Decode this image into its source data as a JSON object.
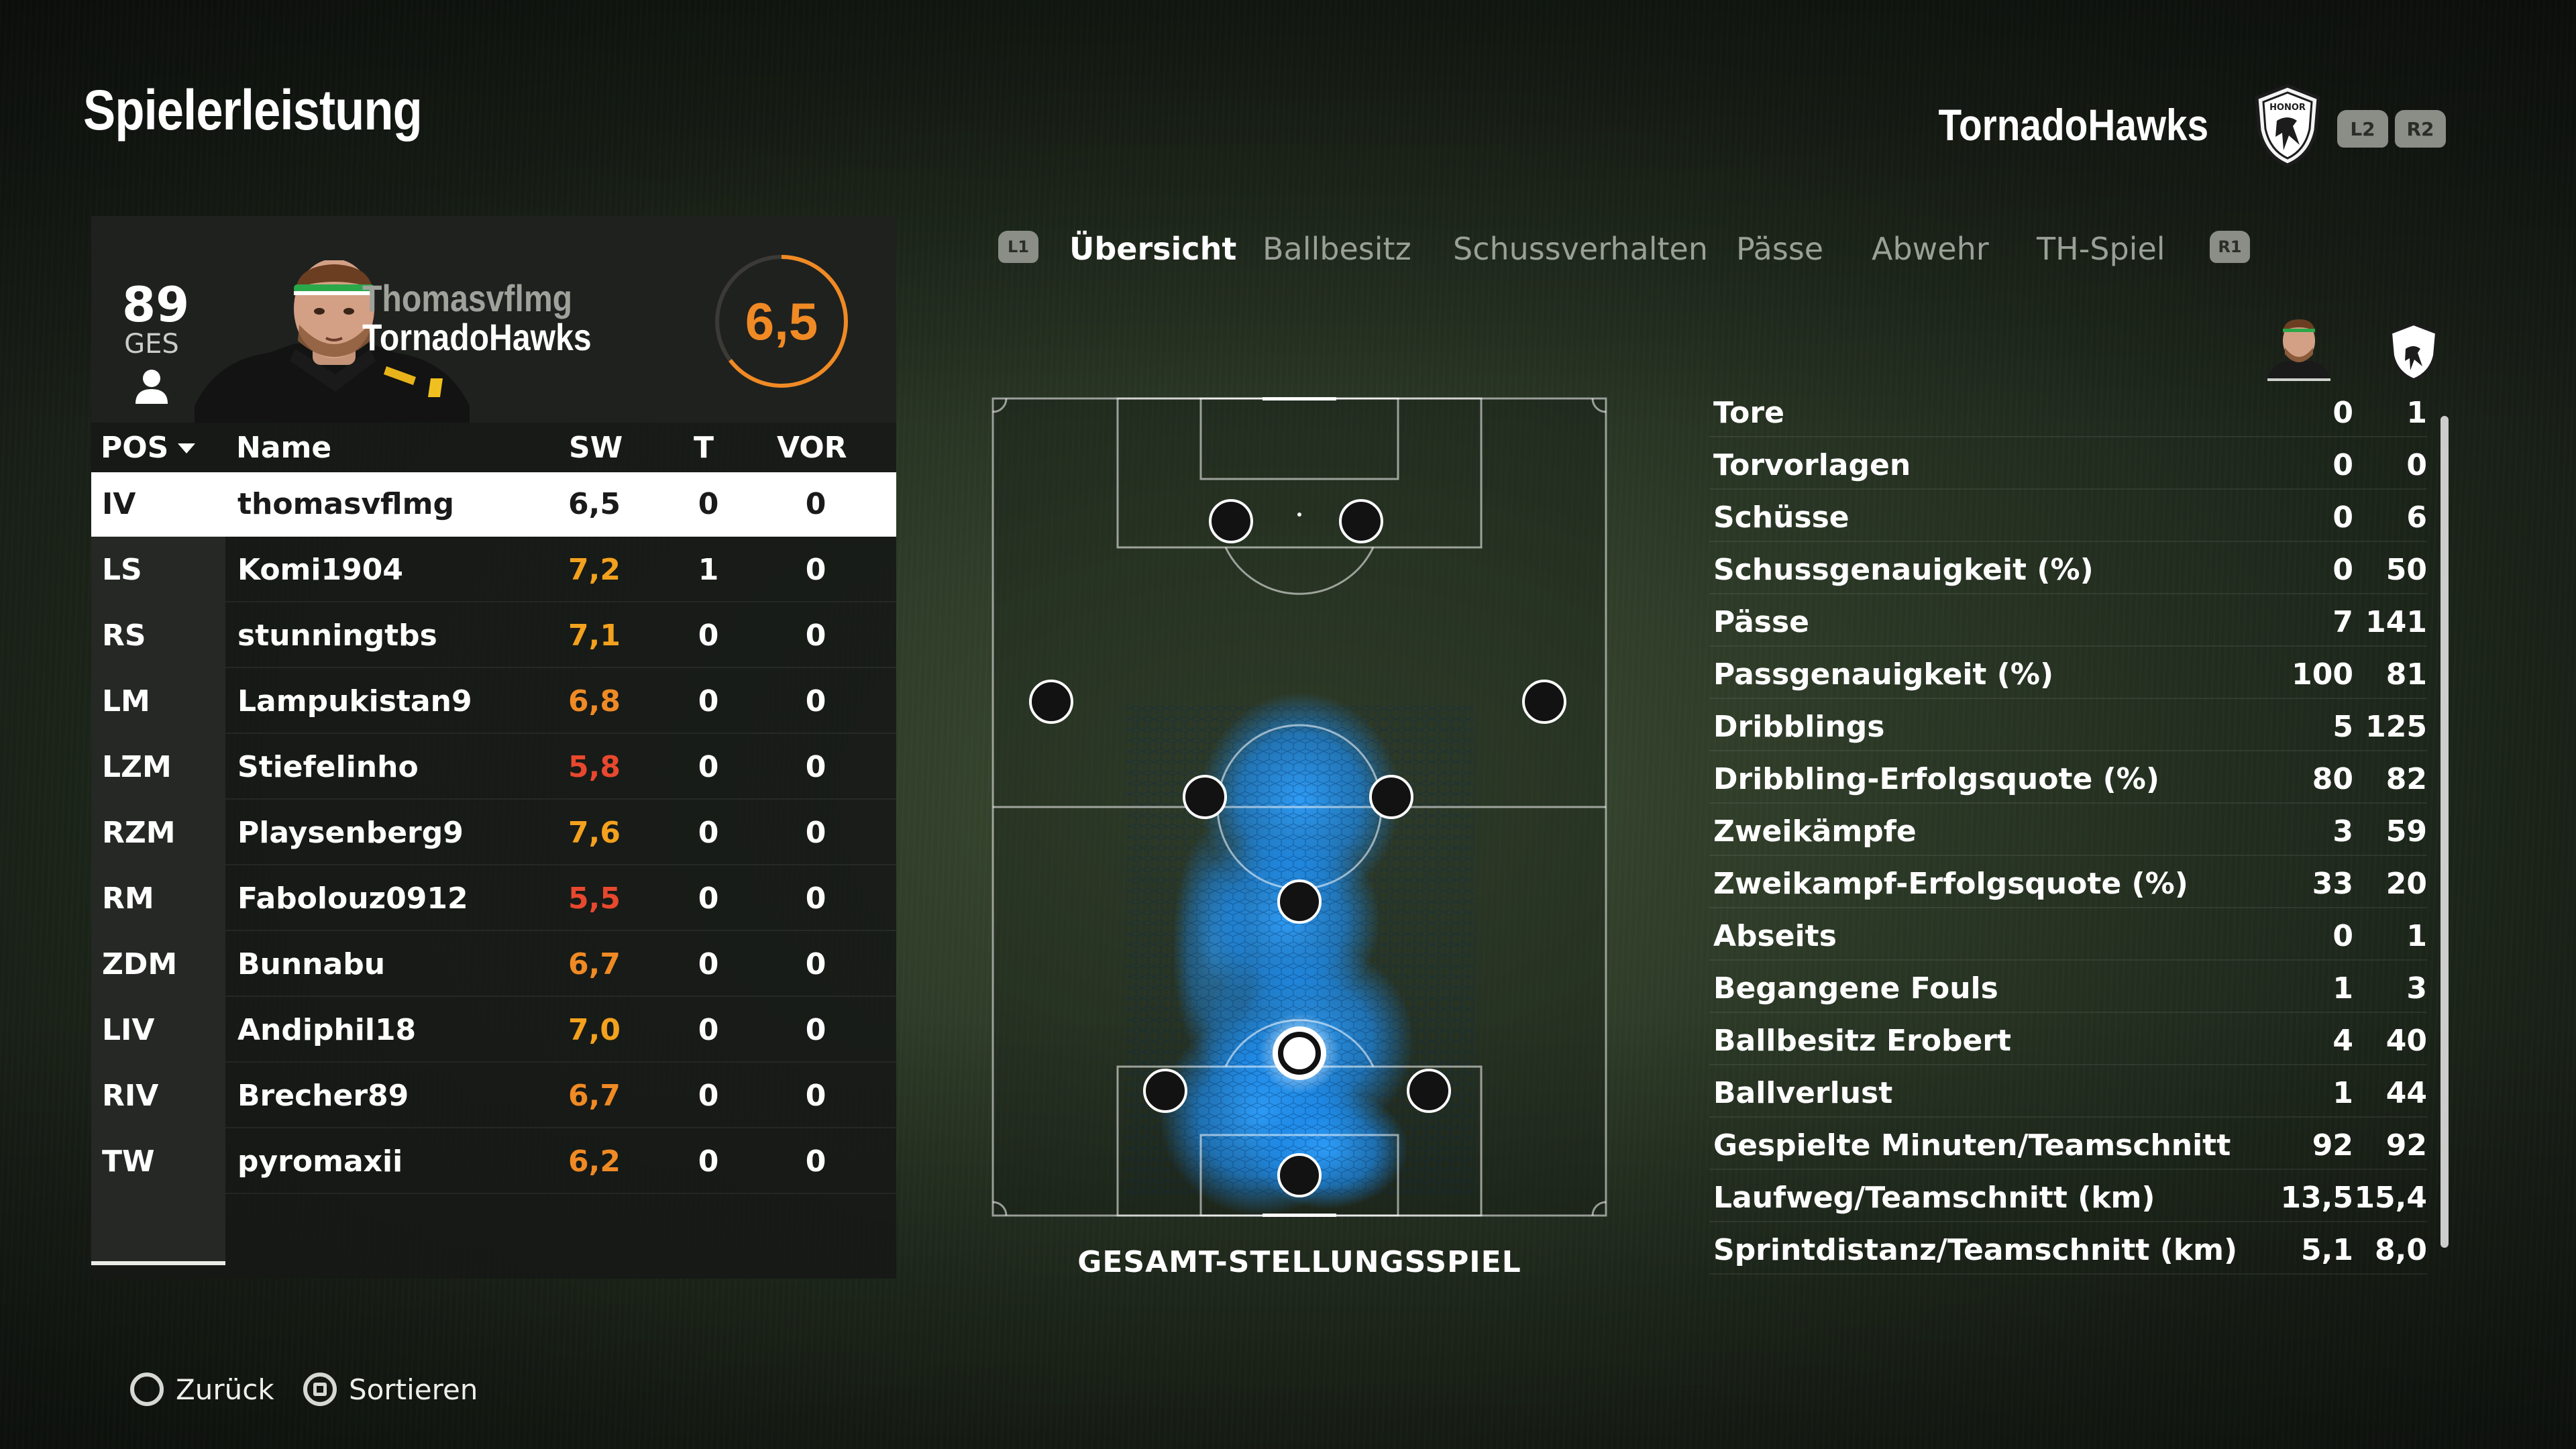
{
  "header": {
    "title": "Spielerleistung",
    "team": "TornadoHawks",
    "crest_text": "HONOR",
    "left_bumper": "L2",
    "right_bumper": "R2"
  },
  "player": {
    "overall": "89",
    "overall_label": "GES",
    "name": "Thomasvflmg",
    "club": "TornadoHawks",
    "rating": "6,5",
    "rating_color": "#f08a24"
  },
  "table": {
    "headers": {
      "pos": "POS",
      "name": "Name",
      "sw": "SW",
      "t": "T",
      "vor": "VOR"
    },
    "rows": [
      {
        "pos": "IV",
        "name": "thomasvflmg",
        "sw": "6,5",
        "t": "0",
        "vor": "0",
        "sw_color": "#1a1a1a"
      },
      {
        "pos": "LS",
        "name": "Komi1904",
        "sw": "7,2",
        "t": "1",
        "vor": "0",
        "sw_color": "#f4a11e"
      },
      {
        "pos": "RS",
        "name": "stunningtbs",
        "sw": "7,1",
        "t": "0",
        "vor": "0",
        "sw_color": "#f4a11e"
      },
      {
        "pos": "LM",
        "name": "Lampukistan9",
        "sw": "6,8",
        "t": "0",
        "vor": "0",
        "sw_color": "#f08a24"
      },
      {
        "pos": "LZM",
        "name": "Stiefelinho",
        "sw": "5,8",
        "t": "0",
        "vor": "0",
        "sw_color": "#e8482e"
      },
      {
        "pos": "RZM",
        "name": "Playsenberg9",
        "sw": "7,6",
        "t": "0",
        "vor": "0",
        "sw_color": "#f4a11e"
      },
      {
        "pos": "RM",
        "name": "Fabolouz0912",
        "sw": "5,5",
        "t": "0",
        "vor": "0",
        "sw_color": "#e8482e"
      },
      {
        "pos": "ZDM",
        "name": "Bunnabu",
        "sw": "6,7",
        "t": "0",
        "vor": "0",
        "sw_color": "#f08a24"
      },
      {
        "pos": "LIV",
        "name": "Andiphil18",
        "sw": "7,0",
        "t": "0",
        "vor": "0",
        "sw_color": "#f4a11e"
      },
      {
        "pos": "RIV",
        "name": "Brecher89",
        "sw": "6,7",
        "t": "0",
        "vor": "0",
        "sw_color": "#f08a24"
      },
      {
        "pos": "TW",
        "name": "pyromaxii",
        "sw": "6,2",
        "t": "0",
        "vor": "0",
        "sw_color": "#f08a24"
      }
    ]
  },
  "tabs": {
    "left_bumper": "L1",
    "right_bumper": "R1",
    "items": [
      "Übersicht",
      "Ballbesitz",
      "Schussverhalten",
      "Pässe",
      "Abwehr",
      "TH-Spiel"
    ],
    "active": "Übersicht"
  },
  "pitch": {
    "label": "GESAMT-STELLUNGSSPIEL",
    "heat_color": "#1e90ff"
  },
  "stats": {
    "rows": [
      {
        "label": "Tore",
        "player": "0",
        "team": "1"
      },
      {
        "label": "Torvorlagen",
        "player": "0",
        "team": "0"
      },
      {
        "label": "Schüsse",
        "player": "0",
        "team": "6"
      },
      {
        "label": "Schussgenauigkeit (%)",
        "player": "0",
        "team": "50"
      },
      {
        "label": "Pässe",
        "player": "7",
        "team": "141"
      },
      {
        "label": "Passgenauigkeit (%)",
        "player": "100",
        "team": "81"
      },
      {
        "label": "Dribblings",
        "player": "5",
        "team": "125"
      },
      {
        "label": "Dribbling-Erfolgsquote (%)",
        "player": "80",
        "team": "82"
      },
      {
        "label": "Zweikämpfe",
        "player": "3",
        "team": "59"
      },
      {
        "label": "Zweikampf-Erfolgsquote (%)",
        "player": "33",
        "team": "20"
      },
      {
        "label": "Abseits",
        "player": "0",
        "team": "1"
      },
      {
        "label": "Begangene Fouls",
        "player": "1",
        "team": "3"
      },
      {
        "label": "Ballbesitz Erobert",
        "player": "4",
        "team": "40"
      },
      {
        "label": "Ballverlust",
        "player": "1",
        "team": "44"
      },
      {
        "label": "Gespielte Minuten/Teamschnitt",
        "player": "92",
        "team": "92"
      },
      {
        "label": "Laufweg/Teamschnitt (km)",
        "player": "13,5",
        "team": "15,4"
      },
      {
        "label": "Sprintdistanz/Teamschnitt (km)",
        "player": "5,1",
        "team": "8,0"
      }
    ]
  },
  "footer": {
    "back": "Zurück",
    "sort": "Sortieren"
  }
}
